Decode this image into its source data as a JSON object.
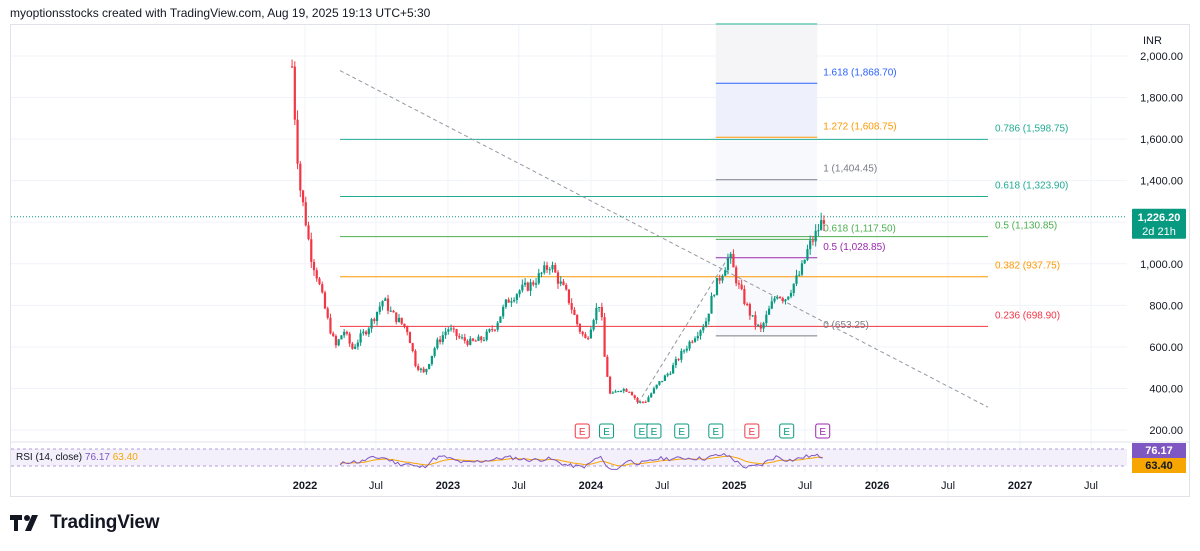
{
  "header": {
    "title": "myoptionsstocks created with TradingView.com, Aug 19, 2025 19:13 UTC+5:30"
  },
  "brand": {
    "name": "TradingView",
    "logo_icon": "tradingview-logo-icon"
  },
  "colors": {
    "grid": "#f0f3fa",
    "up": "#089981",
    "down": "#f23645",
    "trend": "#9598a1",
    "rsi": "#7e57c2",
    "rsi_ma": "#f7a600",
    "fib_teal": "#22ab94",
    "fib_green": "#4caf50",
    "fib_orange": "#ff9800",
    "fib_red": "#f23645",
    "fib_blue": "#2962ff",
    "fib_purple": "#9c27b0",
    "fib_gray": "#787b86"
  },
  "chart_data": {
    "type": "candlestick",
    "currency": "INR",
    "last_price": {
      "value": "1,226.20",
      "countdown": "2d 21h"
    },
    "ylim": [
      200,
      2000
    ],
    "yticks": [
      "2,000.00",
      "1,800.00",
      "1,600.00",
      "1,400.00",
      "1,200.00",
      "1,000.00",
      "800.00",
      "600.00",
      "400.00",
      "200.00"
    ],
    "xtick_labels": [
      "2022",
      "Jul",
      "2023",
      "Jul",
      "2024",
      "Jul",
      "2025",
      "Jul",
      "2026",
      "Jul",
      "2027",
      "Jul"
    ],
    "price_path": [
      [
        "2021-11-29",
        1950
      ],
      [
        "2021-12-06",
        1720
      ],
      [
        "2021-12-13",
        1520
      ],
      [
        "2021-12-20",
        1360
      ],
      [
        "2022-01-01",
        1230
      ],
      [
        "2022-01-15",
        1050
      ],
      [
        "2022-02-01",
        940
      ],
      [
        "2022-02-15",
        830
      ],
      [
        "2022-03-01",
        720
      ],
      [
        "2022-03-20",
        600
      ],
      [
        "2022-04-10",
        680
      ],
      [
        "2022-05-01",
        590
      ],
      [
        "2022-05-20",
        640
      ],
      [
        "2022-06-10",
        690
      ],
      [
        "2022-07-01",
        760
      ],
      [
        "2022-07-20",
        830
      ],
      [
        "2022-08-10",
        760
      ],
      [
        "2022-09-01",
        720
      ],
      [
        "2022-09-20",
        680
      ],
      [
        "2022-10-10",
        520
      ],
      [
        "2022-11-01",
        470
      ],
      [
        "2022-12-01",
        610
      ],
      [
        "2023-01-01",
        690
      ],
      [
        "2023-02-01",
        640
      ],
      [
        "2023-03-01",
        620
      ],
      [
        "2023-04-01",
        640
      ],
      [
        "2023-05-01",
        700
      ],
      [
        "2023-06-01",
        820
      ],
      [
        "2023-07-01",
        870
      ],
      [
        "2023-08-01",
        900
      ],
      [
        "2023-09-01",
        960
      ],
      [
        "2023-09-20",
        1000
      ],
      [
        "2023-10-10",
        920
      ],
      [
        "2023-11-01",
        850
      ],
      [
        "2023-12-01",
        690
      ],
      [
        "2023-12-20",
        630
      ],
      [
        "2024-01-10",
        760
      ],
      [
        "2024-01-25",
        820
      ],
      [
        "2024-02-05",
        550
      ],
      [
        "2024-02-20",
        360
      ],
      [
        "2024-03-15",
        400
      ],
      [
        "2024-04-10",
        390
      ],
      [
        "2024-05-01",
        330
      ],
      [
        "2024-05-20",
        340
      ],
      [
        "2024-06-20",
        420
      ],
      [
        "2024-07-20",
        480
      ],
      [
        "2024-08-20",
        570
      ],
      [
        "2024-09-20",
        650
      ],
      [
        "2024-10-20",
        720
      ],
      [
        "2024-11-10",
        870
      ],
      [
        "2024-12-01",
        960
      ],
      [
        "2024-12-20",
        1040
      ],
      [
        "2025-01-10",
        900
      ],
      [
        "2025-02-01",
        800
      ],
      [
        "2025-02-20",
        720
      ],
      [
        "2025-03-10",
        680
      ],
      [
        "2025-04-01",
        780
      ],
      [
        "2025-04-20",
        860
      ],
      [
        "2025-05-10",
        830
      ],
      [
        "2025-06-01",
        900
      ],
      [
        "2025-06-20",
        960
      ],
      [
        "2025-07-10",
        1080
      ],
      [
        "2025-07-25",
        1130
      ],
      [
        "2025-08-19",
        1226
      ]
    ],
    "rsi": {
      "label": "RSI (14, close)",
      "value": "76.17",
      "ma_value": "63.40"
    },
    "fib_right": [
      {
        "label": "0.786 (1,598.75)",
        "price": 1598.75,
        "color": "#22ab94"
      },
      {
        "label": "0.618 (1,323.90)",
        "price": 1323.9,
        "color": "#22ab94"
      },
      {
        "label": "0.5 (1,130.85)",
        "price": 1130.85,
        "color": "#4caf50"
      },
      {
        "label": "0.382 (937.75)",
        "price": 937.75,
        "color": "#ff9800"
      },
      {
        "label": "0.236 (698.90)",
        "price": 698.9,
        "color": "#f23645"
      }
    ],
    "fib_ext": [
      {
        "label": "1.618 (1,868.70)",
        "price": 1868.7,
        "color": "#2962ff"
      },
      {
        "label": "1.272 (1,608.75)",
        "price": 1608.75,
        "color": "#ff9800"
      },
      {
        "label": "1 (1,404.45)",
        "price": 1404.45,
        "color": "#787b86"
      },
      {
        "label": "0.618 (1,117.50)",
        "price": 1117.5,
        "color": "#4caf50"
      },
      {
        "label": "0.5 (1,028.85)",
        "price": 1028.85,
        "color": "#9c27b0"
      },
      {
        "label": "0 (653.25)",
        "price": 653.25,
        "color": "#787b86"
      }
    ],
    "earnings": [
      {
        "label": "E",
        "date": "2023-12-10",
        "color": "#f23645"
      },
      {
        "label": "E",
        "date": "2024-02-10",
        "color": "#089981"
      },
      {
        "label": "E",
        "date": "2024-05-10",
        "color": "#089981"
      },
      {
        "label": "E",
        "date": "2024-06-10",
        "color": "#089981"
      },
      {
        "label": "E",
        "date": "2024-08-20",
        "color": "#089981"
      },
      {
        "label": "E",
        "date": "2024-11-15",
        "color": "#089981"
      },
      {
        "label": "E",
        "date": "2025-02-15",
        "color": "#f23645"
      },
      {
        "label": "E",
        "date": "2025-05-15",
        "color": "#089981"
      },
      {
        "label": "E",
        "date": "2025-08-15",
        "color": "#9c27b0"
      }
    ]
  }
}
